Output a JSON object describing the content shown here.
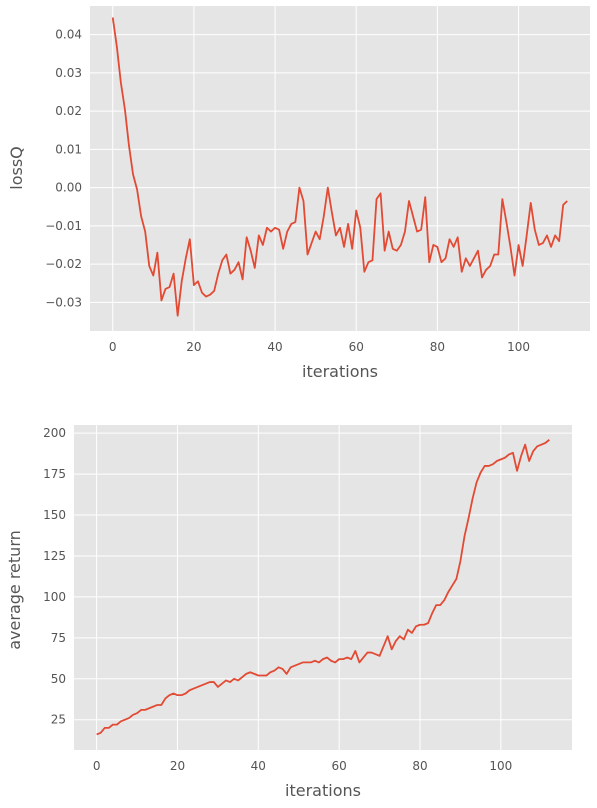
{
  "chart_data": [
    {
      "type": "line",
      "xlabel": "iterations",
      "ylabel": "lossQ",
      "xlim": [
        -5.6,
        117.6
      ],
      "ylim": [
        -0.0375,
        0.0475
      ],
      "xticks": [
        0,
        20,
        40,
        60,
        80,
        100
      ],
      "xtick_labels": [
        "0",
        "20",
        "40",
        "60",
        "80",
        "100"
      ],
      "yticks": [
        -0.03,
        -0.02,
        -0.01,
        0.0,
        0.01,
        0.02,
        0.03,
        0.04
      ],
      "ytick_labels": [
        "−0.03",
        "−0.02",
        "−0.01",
        "0.00",
        "0.01",
        "0.02",
        "0.03",
        "0.04"
      ],
      "grid": true,
      "color": "#E24A33",
      "series": [
        {
          "values": [
            0.0445,
            0.037,
            0.0275,
            0.0205,
            0.011,
            0.0035,
            -0.0005,
            -0.0075,
            -0.0115,
            -0.0205,
            -0.023,
            -0.017,
            -0.0295,
            -0.0265,
            -0.026,
            -0.0225,
            -0.0335,
            -0.0245,
            -0.0185,
            -0.0135,
            -0.0255,
            -0.0245,
            -0.0275,
            -0.0285,
            -0.028,
            -0.027,
            -0.0225,
            -0.019,
            -0.0175,
            -0.0225,
            -0.0215,
            -0.0195,
            -0.024,
            -0.013,
            -0.0165,
            -0.021,
            -0.0125,
            -0.015,
            -0.0105,
            -0.0115,
            -0.0105,
            -0.011,
            -0.016,
            -0.0115,
            -0.0095,
            -0.009,
            0.0,
            -0.0035,
            -0.0175,
            -0.0145,
            -0.0115,
            -0.0135,
            -0.0075,
            0.0,
            -0.0065,
            -0.0125,
            -0.0105,
            -0.0155,
            -0.0095,
            -0.016,
            -0.006,
            -0.0105,
            -0.022,
            -0.0195,
            -0.019,
            -0.003,
            -0.0015,
            -0.0165,
            -0.0115,
            -0.016,
            -0.0165,
            -0.015,
            -0.0115,
            -0.0035,
            -0.0075,
            -0.0115,
            -0.011,
            -0.0025,
            -0.0195,
            -0.015,
            -0.0155,
            -0.0195,
            -0.0185,
            -0.0135,
            -0.0155,
            -0.013,
            -0.022,
            -0.0185,
            -0.0205,
            -0.0185,
            -0.0165,
            -0.0235,
            -0.0215,
            -0.0205,
            -0.0175,
            -0.0175,
            -0.003,
            -0.009,
            -0.0155,
            -0.023,
            -0.015,
            -0.0205,
            -0.0125,
            -0.004,
            -0.011,
            -0.015,
            -0.0145,
            -0.0125,
            -0.0155,
            -0.0125,
            -0.014,
            -0.0045,
            -0.0035
          ]
        }
      ]
    },
    {
      "type": "line",
      "xlabel": "iterations",
      "ylabel": "average return",
      "xlim": [
        -5.6,
        117.6
      ],
      "ylim": [
        6.5,
        205
      ],
      "xticks": [
        0,
        20,
        40,
        60,
        80,
        100
      ],
      "xtick_labels": [
        "0",
        "20",
        "40",
        "60",
        "80",
        "100"
      ],
      "yticks": [
        25,
        50,
        75,
        100,
        125,
        150,
        175,
        200
      ],
      "ytick_labels": [
        "25",
        "50",
        "75",
        "100",
        "125",
        "150",
        "175",
        "200"
      ],
      "grid": true,
      "color": "#E24A33",
      "series": [
        {
          "values": [
            16,
            17,
            20,
            20,
            22,
            22,
            24,
            25,
            26,
            28,
            29,
            31,
            31,
            32,
            33,
            34,
            34,
            38,
            40,
            41,
            40,
            40,
            41,
            43,
            44,
            45,
            46,
            47,
            48,
            48,
            45,
            47,
            49,
            48,
            50,
            49,
            51,
            53,
            54,
            53,
            52,
            52,
            52,
            54,
            55,
            57,
            56,
            53,
            57,
            58,
            59,
            60,
            60,
            60,
            61,
            60,
            62,
            63,
            61,
            60,
            62,
            62,
            63,
            62,
            67,
            60,
            63,
            66,
            66,
            65,
            64,
            70,
            76,
            68,
            73,
            76,
            74,
            80,
            78,
            82,
            83,
            83,
            84,
            90,
            95,
            95,
            98,
            103,
            107,
            111,
            122,
            137,
            148,
            160,
            170,
            176,
            180,
            180,
            181,
            183,
            184,
            185,
            187,
            188,
            177,
            186,
            193,
            183,
            189,
            192,
            193,
            194,
            196
          ]
        }
      ]
    }
  ]
}
